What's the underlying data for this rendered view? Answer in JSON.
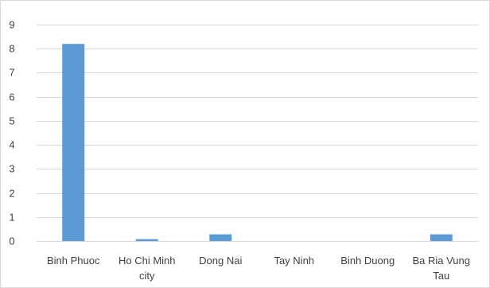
{
  "chart_data": {
    "type": "bar",
    "title": "",
    "xlabel": "",
    "ylabel": "",
    "categories": [
      [
        "Binh Phuoc"
      ],
      [
        "Ho Chi Minh",
        "city"
      ],
      [
        "Dong Nai"
      ],
      [
        "Tay Ninh"
      ],
      [
        "Binh Duong"
      ],
      [
        "Ba Ria Vung",
        "Tau"
      ]
    ],
    "values": [
      8.2,
      0.08,
      0.28,
      0,
      0,
      0.28
    ],
    "ylim": [
      0,
      9
    ],
    "yticks": [
      0,
      1,
      2,
      3,
      4,
      5,
      6,
      7,
      8,
      9
    ],
    "grid": true,
    "legend": "none",
    "bar_color": "#5b9bd5"
  }
}
